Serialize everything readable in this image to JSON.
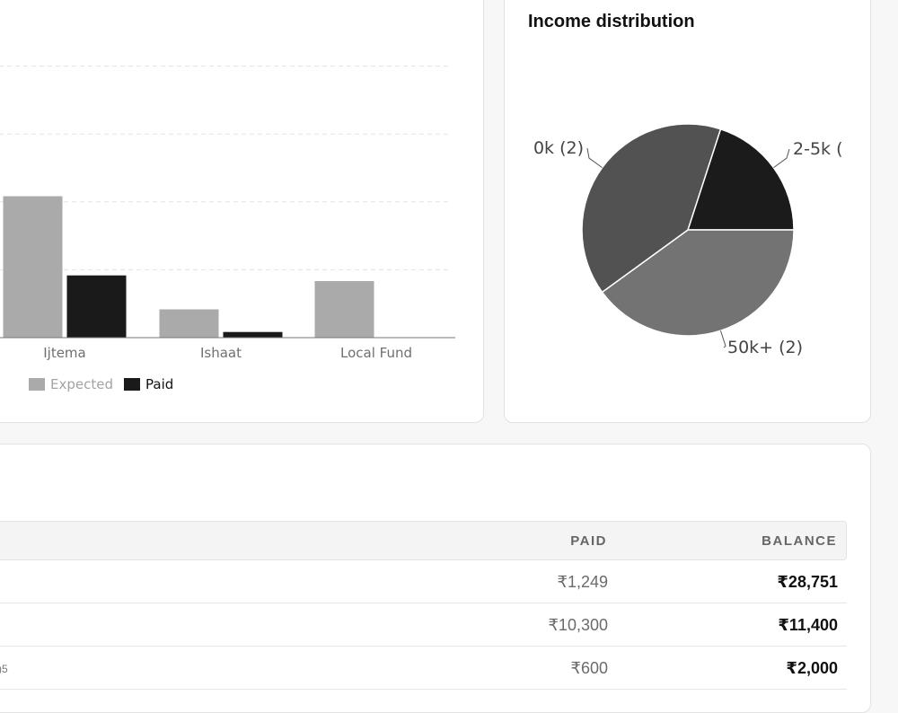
{
  "bar_chart": {
    "chart_data": {
      "type": "bar",
      "categories": [
        "Ijtema",
        "Ishaat",
        "Local Fund"
      ],
      "series": [
        {
          "name": "Expected",
          "values": [
            2500,
            500,
            1000
          ]
        },
        {
          "name": "Paid",
          "values": [
            1100,
            100,
            0
          ]
        }
      ],
      "ylim": [
        0,
        6000
      ],
      "grid": true,
      "legend": "bottom-left"
    },
    "legend": [
      {
        "label": "Expected",
        "color": "#aaaaaa"
      },
      {
        "label": "Paid",
        "color": "#1a1a1a"
      }
    ]
  },
  "pie_chart": {
    "title": "Income distribution",
    "chart_data": {
      "type": "pie",
      "slices": [
        {
          "label": "2-5k (",
          "value": 2,
          "color": "#1b1b1b"
        },
        {
          "label": "50k+ (2)",
          "value": 4,
          "color": "#737373"
        },
        {
          "label": "0k (2)",
          "value": 4,
          "color": "#525252"
        }
      ]
    }
  },
  "table": {
    "headers": {
      "paid": "PAID",
      "balance": "BALANCE"
    },
    "rows": [
      {
        "left_fragment": "",
        "paid": "₹1,249",
        "balance": "₹28,751"
      },
      {
        "left_fragment": "",
        "paid": "₹10,300",
        "balance": "₹11,400"
      },
      {
        "left_fragment": ")5",
        "paid": "₹600",
        "balance": "₹2,000"
      }
    ]
  }
}
